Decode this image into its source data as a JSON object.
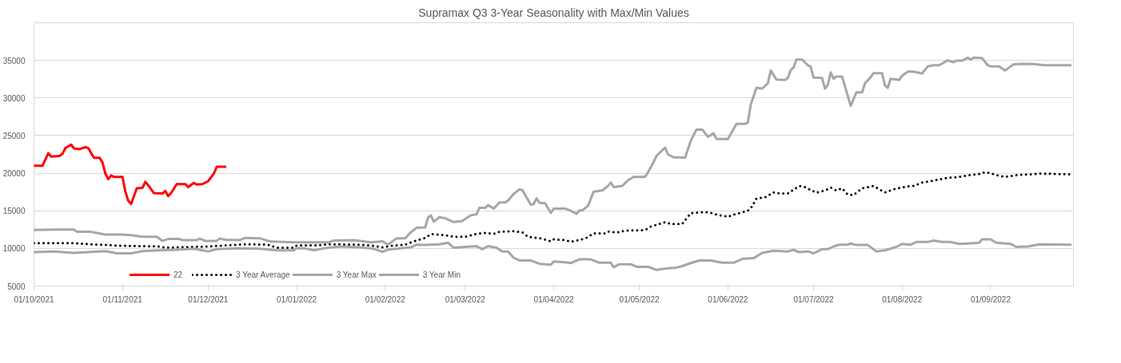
{
  "chart_data": {
    "type": "line",
    "title": "Supramax Q3 3-Year Seasonality with Max/Min Values",
    "xlim": [
      "2021-10-01",
      "2022-09-30"
    ],
    "xticks": [
      {
        "value": "2021-10-01",
        "label": "01/10/2021"
      },
      {
        "value": "2021-11-01",
        "label": "01/11/2021"
      },
      {
        "value": "2021-12-01",
        "label": "01/12/2021"
      },
      {
        "value": "2022-01-01",
        "label": "01/01/2022"
      },
      {
        "value": "2022-02-01",
        "label": "01/02/2022"
      },
      {
        "value": "2022-03-01",
        "label": "01/03/2022"
      },
      {
        "value": "2022-04-01",
        "label": "01/04/2022"
      },
      {
        "value": "2022-05-01",
        "label": "01/05/2022"
      },
      {
        "value": "2022-06-01",
        "label": "01/06/2022"
      },
      {
        "value": "2022-07-01",
        "label": "01/07/2022"
      },
      {
        "value": "2022-08-01",
        "label": "01/08/2022"
      },
      {
        "value": "2022-09-01",
        "label": "01/09/2022"
      }
    ],
    "ylim": [
      5000,
      40000
    ],
    "yticks": [
      5000,
      10000,
      15000,
      20000,
      25000,
      30000,
      35000
    ],
    "grid": "y",
    "legend": "bottom",
    "series": [
      {
        "name": "22",
        "color": "#ff0000",
        "line_style": "solid",
        "x": [
          "2021-10-01",
          "2021-10-04",
          "2021-10-06",
          "2021-10-07",
          "2021-10-10",
          "2021-10-11",
          "2021-10-12",
          "2021-10-14",
          "2021-10-15",
          "2021-10-17",
          "2021-10-19",
          "2021-10-20",
          "2021-10-22",
          "2021-10-24",
          "2021-10-25",
          "2021-10-26",
          "2021-10-27",
          "2021-10-28",
          "2021-10-29",
          "2021-11-01",
          "2021-11-02",
          "2021-11-03",
          "2021-11-04",
          "2021-11-06",
          "2021-11-08",
          "2021-11-09",
          "2021-11-10",
          "2021-11-12",
          "2021-11-15",
          "2021-11-16",
          "2021-11-17",
          "2021-11-18",
          "2021-11-20",
          "2021-11-23",
          "2021-11-24",
          "2021-11-26",
          "2021-11-27",
          "2021-11-29",
          "2021-12-01",
          "2021-12-03",
          "2021-12-04",
          "2021-12-07"
        ],
        "values": [
          21000,
          21000,
          22650,
          22200,
          22300,
          22600,
          23350,
          23800,
          23300,
          23200,
          23450,
          23350,
          22050,
          22050,
          21400,
          19950,
          19200,
          19700,
          19500,
          19500,
          17550,
          16350,
          15900,
          18000,
          18050,
          18850,
          18400,
          17350,
          17300,
          17650,
          16950,
          17350,
          18550,
          18550,
          18150,
          18700,
          18500,
          18550,
          18950,
          19950,
          20850,
          20850
        ]
      },
      {
        "name": "3 Year Average",
        "color": "#000000",
        "line_style": "dotted",
        "x": [
          "2021-10-01",
          "2021-10-15",
          "2021-10-21",
          "2021-11-01",
          "2021-11-14",
          "2021-11-16",
          "2021-12-01",
          "2021-12-07",
          "2021-12-14",
          "2021-12-22",
          "2021-12-25",
          "2021-12-31",
          "2022-01-01",
          "2022-01-08",
          "2022-01-12",
          "2022-01-23",
          "2022-01-28",
          "2022-01-31",
          "2022-02-03",
          "2022-02-08",
          "2022-02-11",
          "2022-02-15",
          "2022-02-17",
          "2022-02-22",
          "2022-02-25",
          "2022-03-01",
          "2022-03-05",
          "2022-03-08",
          "2022-03-11",
          "2022-03-13",
          "2022-03-18",
          "2022-03-21",
          "2022-03-23",
          "2022-03-28",
          "2022-03-31",
          "2022-04-01",
          "2022-04-05",
          "2022-04-07",
          "2022-04-12",
          "2022-04-15",
          "2022-04-19",
          "2022-04-20",
          "2022-04-23",
          "2022-04-26",
          "2022-05-03",
          "2022-05-05",
          "2022-05-10",
          "2022-05-12",
          "2022-05-16",
          "2022-05-17",
          "2022-05-19",
          "2022-05-21",
          "2022-05-24",
          "2022-05-27",
          "2022-05-28",
          "2022-06-01",
          "2022-06-03",
          "2022-06-08",
          "2022-06-09",
          "2022-06-11",
          "2022-06-14",
          "2022-06-17",
          "2022-06-19",
          "2022-06-22",
          "2022-06-26",
          "2022-06-28",
          "2022-07-02",
          "2022-07-05",
          "2022-07-07",
          "2022-07-09",
          "2022-07-11",
          "2022-07-13",
          "2022-07-15",
          "2022-07-18",
          "2022-07-22",
          "2022-07-26",
          "2022-07-29",
          "2022-08-03",
          "2022-08-05",
          "2022-08-08",
          "2022-08-13",
          "2022-08-17",
          "2022-08-20",
          "2022-08-24",
          "2022-08-28",
          "2022-08-30",
          "2022-09-01",
          "2022-09-03",
          "2022-09-06",
          "2022-09-10",
          "2022-09-15",
          "2022-09-18",
          "2022-09-29"
        ],
        "values": [
          10700,
          10700,
          10550,
          10350,
          10250,
          10100,
          10250,
          10400,
          10550,
          10500,
          10100,
          10100,
          10400,
          10400,
          10550,
          10500,
          10350,
          10150,
          10350,
          10500,
          10950,
          11400,
          11900,
          11750,
          11550,
          11550,
          11950,
          12050,
          11950,
          12200,
          12300,
          12150,
          11550,
          11300,
          10950,
          11200,
          11100,
          10900,
          11300,
          12000,
          12000,
          12250,
          12100,
          12350,
          12450,
          12900,
          13500,
          13250,
          13250,
          13750,
          14700,
          14750,
          14850,
          14650,
          14500,
          14200,
          14500,
          15000,
          15300,
          16650,
          16800,
          17450,
          17300,
          17300,
          18300,
          18150,
          17400,
          17700,
          18100,
          17700,
          18000,
          17150,
          17100,
          18000,
          18300,
          17450,
          17850,
          18250,
          18300,
          18750,
          19100,
          19400,
          19450,
          19700,
          19900,
          20150,
          20000,
          19750,
          19500,
          19750,
          19850,
          19950,
          19850
        ]
      },
      {
        "name": "3 Year Max",
        "color": "#a6a6a6",
        "line_style": "solid",
        "x": [
          "2021-10-01",
          "2021-10-08",
          "2021-10-15",
          "2021-10-16",
          "2021-10-21",
          "2021-10-26",
          "2021-11-01",
          "2021-11-04",
          "2021-11-08",
          "2021-11-13",
          "2021-11-15",
          "2021-11-17",
          "2021-11-21",
          "2021-11-22",
          "2021-11-27",
          "2021-11-28",
          "2021-11-30",
          "2021-12-04",
          "2021-12-05",
          "2021-12-07",
          "2021-12-12",
          "2021-12-14",
          "2021-12-19",
          "2021-12-23",
          "2022-01-01",
          "2022-01-12",
          "2022-01-14",
          "2022-01-21",
          "2022-01-27",
          "2022-01-31",
          "2022-02-02",
          "2022-02-05",
          "2022-02-08",
          "2022-02-10",
          "2022-02-12",
          "2022-02-15",
          "2022-02-16",
          "2022-02-17",
          "2022-02-18",
          "2022-02-20",
          "2022-02-22",
          "2022-02-25",
          "2022-02-28",
          "2022-03-03",
          "2022-03-05",
          "2022-03-06",
          "2022-03-08",
          "2022-03-09",
          "2022-03-11",
          "2022-03-13",
          "2022-03-15",
          "2022-03-16",
          "2022-03-18",
          "2022-03-20",
          "2022-03-21",
          "2022-03-24",
          "2022-03-25",
          "2022-03-26",
          "2022-03-27",
          "2022-03-29",
          "2022-03-31",
          "2022-04-01",
          "2022-04-05",
          "2022-04-07",
          "2022-04-09",
          "2022-04-10",
          "2022-04-11",
          "2022-04-13",
          "2022-04-15",
          "2022-04-18",
          "2022-04-20",
          "2022-04-21",
          "2022-04-22",
          "2022-04-25",
          "2022-04-27",
          "2022-04-29",
          "2022-05-03",
          "2022-05-04",
          "2022-05-06",
          "2022-05-07",
          "2022-05-10",
          "2022-05-11",
          "2022-05-13",
          "2022-05-15",
          "2022-05-17",
          "2022-05-19",
          "2022-05-21",
          "2022-05-23",
          "2022-05-25",
          "2022-05-27",
          "2022-05-28",
          "2022-06-01",
          "2022-06-04",
          "2022-06-07",
          "2022-06-08",
          "2022-06-09",
          "2022-06-11",
          "2022-06-13",
          "2022-06-15",
          "2022-06-16",
          "2022-06-18",
          "2022-06-21",
          "2022-06-22",
          "2022-06-23",
          "2022-06-24",
          "2022-06-25",
          "2022-06-27",
          "2022-06-29",
          "2022-06-30",
          "2022-07-01",
          "2022-07-04",
          "2022-07-05",
          "2022-07-06",
          "2022-07-07",
          "2022-07-08",
          "2022-07-09",
          "2022-07-11",
          "2022-07-14",
          "2022-07-16",
          "2022-07-18",
          "2022-07-19",
          "2022-07-21",
          "2022-07-22",
          "2022-07-25",
          "2022-07-26",
          "2022-07-27",
          "2022-07-28",
          "2022-07-31",
          "2022-08-01",
          "2022-08-03",
          "2022-08-05",
          "2022-08-07",
          "2022-08-08",
          "2022-08-10",
          "2022-08-12",
          "2022-08-14",
          "2022-08-17",
          "2022-08-19",
          "2022-08-20",
          "2022-08-22",
          "2022-08-24",
          "2022-08-25",
          "2022-08-26",
          "2022-08-29",
          "2022-08-31",
          "2022-09-01",
          "2022-09-04",
          "2022-09-06",
          "2022-09-09",
          "2022-09-12",
          "2022-09-16",
          "2022-09-20",
          "2022-09-29"
        ],
        "values": [
          12450,
          12500,
          12500,
          12200,
          12200,
          11850,
          11850,
          11750,
          11550,
          11550,
          11000,
          11250,
          11250,
          11100,
          11100,
          11300,
          11000,
          11000,
          11300,
          11150,
          11100,
          11400,
          11350,
          10900,
          10800,
          10800,
          11050,
          11100,
          10800,
          10950,
          10500,
          11350,
          11350,
          12150,
          12750,
          12800,
          14100,
          14400,
          13550,
          14150,
          14000,
          13500,
          13650,
          14400,
          14550,
          15400,
          15400,
          15750,
          15300,
          16100,
          16100,
          16350,
          17250,
          17850,
          17750,
          15800,
          15900,
          16650,
          16050,
          16000,
          14700,
          15300,
          15300,
          15000,
          14600,
          15050,
          15050,
          15650,
          17550,
          17700,
          18300,
          18750,
          18150,
          18300,
          19050,
          19500,
          19500,
          20100,
          21500,
          22300,
          23400,
          22500,
          22100,
          22100,
          22050,
          24300,
          25800,
          25800,
          24850,
          25300,
          24550,
          24550,
          26550,
          26550,
          26750,
          29100,
          31350,
          31250,
          31950,
          33650,
          32450,
          32400,
          32650,
          33700,
          34050,
          35100,
          35100,
          34350,
          34150,
          32700,
          32650,
          31250,
          31750,
          33400,
          32550,
          32850,
          32850,
          28950,
          30750,
          30750,
          31950,
          32750,
          33300,
          33300,
          31650,
          31350,
          32550,
          32400,
          32950,
          33500,
          33500,
          33350,
          33250,
          34200,
          34350,
          34350,
          35000,
          34750,
          34950,
          34950,
          35350,
          35100,
          35350,
          35300,
          34350,
          34200,
          34200,
          33650,
          34450,
          34550,
          34500,
          34350,
          34350
        ]
      },
      {
        "name": "3 Year Min",
        "color": "#a6a6a6",
        "line_style": "solid",
        "x": [
          "2021-10-01",
          "2021-10-08",
          "2021-10-11",
          "2021-10-15",
          "2021-10-20",
          "2021-10-26",
          "2021-10-30",
          "2021-11-04",
          "2021-11-08",
          "2021-11-14",
          "2021-11-19",
          "2021-11-26",
          "2021-12-01",
          "2021-12-04",
          "2021-12-11",
          "2021-12-19",
          "2021-12-25",
          "2021-12-31",
          "2022-01-01",
          "2022-01-04",
          "2022-01-07",
          "2022-01-11",
          "2022-01-16",
          "2022-01-23",
          "2022-01-28",
          "2022-01-31",
          "2022-02-02",
          "2022-02-05",
          "2022-02-10",
          "2022-02-12",
          "2022-02-15",
          "2022-02-20",
          "2022-02-23",
          "2022-02-25",
          "2022-03-05",
          "2022-03-07",
          "2022-03-09",
          "2022-03-12",
          "2022-03-14",
          "2022-03-16",
          "2022-03-18",
          "2022-03-20",
          "2022-03-24",
          "2022-03-27",
          "2022-03-31",
          "2022-04-01",
          "2022-04-05",
          "2022-04-07",
          "2022-04-10",
          "2022-04-14",
          "2022-04-17",
          "2022-04-21",
          "2022-04-22",
          "2022-04-24",
          "2022-04-28",
          "2022-04-30",
          "2022-05-04",
          "2022-05-07",
          "2022-05-11",
          "2022-05-14",
          "2022-05-16",
          "2022-05-19",
          "2022-05-22",
          "2022-05-26",
          "2022-05-30",
          "2022-06-03",
          "2022-06-06",
          "2022-06-10",
          "2022-06-13",
          "2022-06-17",
          "2022-06-22",
          "2022-06-24",
          "2022-06-26",
          "2022-06-29",
          "2022-07-01",
          "2022-07-04",
          "2022-07-06",
          "2022-07-08",
          "2022-07-10",
          "2022-07-13",
          "2022-07-14",
          "2022-07-16",
          "2022-07-20",
          "2022-07-23",
          "2022-07-26",
          "2022-07-30",
          "2022-08-01",
          "2022-08-04",
          "2022-08-06",
          "2022-08-10",
          "2022-08-12",
          "2022-08-15",
          "2022-08-18",
          "2022-08-21",
          "2022-08-24",
          "2022-08-28",
          "2022-08-29",
          "2022-09-01",
          "2022-09-03",
          "2022-09-08",
          "2022-09-10",
          "2022-09-14",
          "2022-09-18",
          "2022-09-29"
        ],
        "values": [
          9500,
          9600,
          9500,
          9400,
          9500,
          9650,
          9350,
          9350,
          9650,
          9750,
          9800,
          9950,
          9600,
          9900,
          10000,
          9950,
          9750,
          9750,
          10050,
          10000,
          9750,
          10050,
          10250,
          10150,
          9950,
          9550,
          9850,
          9950,
          10150,
          10500,
          10450,
          10550,
          10750,
          10100,
          10300,
          9900,
          10300,
          10100,
          9600,
          9600,
          8750,
          8400,
          8400,
          7950,
          7850,
          8250,
          8150,
          8050,
          8550,
          8550,
          8100,
          8100,
          7500,
          7900,
          7900,
          7550,
          7550,
          7150,
          7350,
          7450,
          7650,
          8050,
          8400,
          8400,
          8100,
          8100,
          8600,
          8700,
          9400,
          9700,
          9600,
          9800,
          9500,
          9600,
          9350,
          9900,
          9900,
          10250,
          10500,
          10500,
          10650,
          10450,
          10450,
          9600,
          9750,
          10200,
          10600,
          10500,
          10850,
          10850,
          11050,
          10850,
          10850,
          10600,
          10650,
          10750,
          11200,
          11200,
          10750,
          10600,
          10200,
          10250,
          10550,
          10500
        ]
      }
    ]
  }
}
